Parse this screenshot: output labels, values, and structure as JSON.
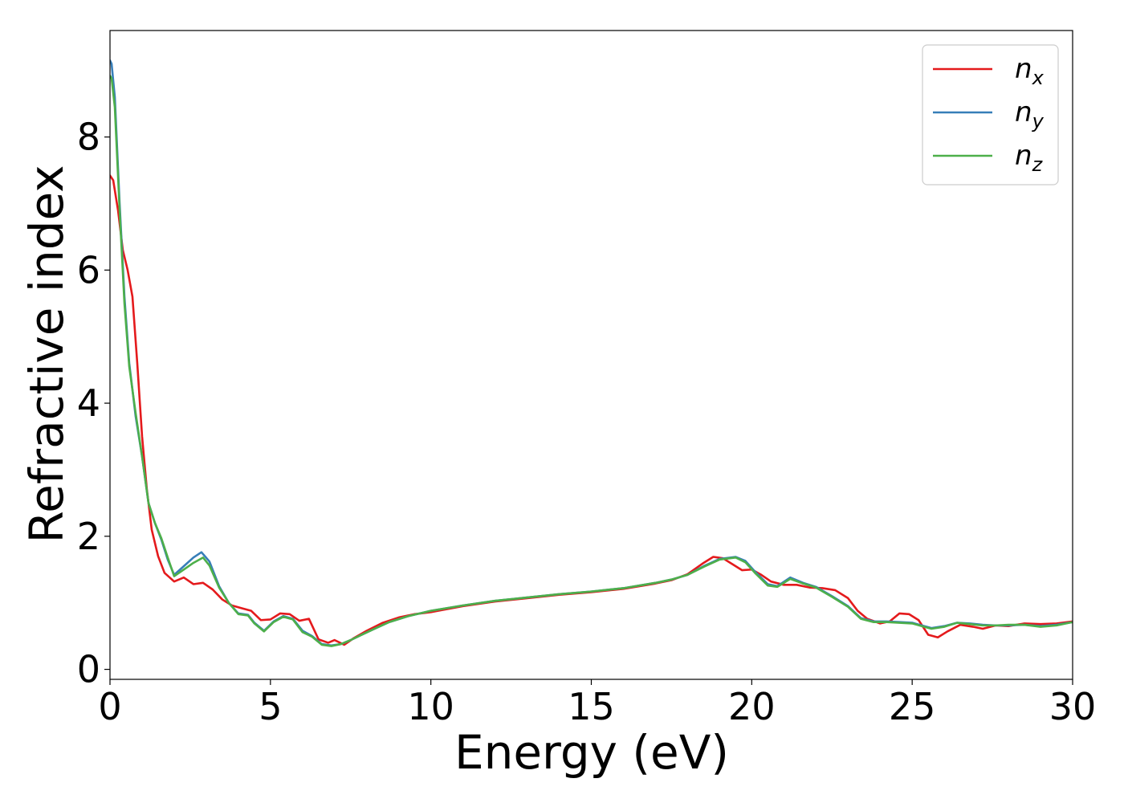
{
  "chart_data": {
    "type": "line",
    "title": "",
    "xlabel": "Energy (eV)",
    "ylabel": "Refractive index",
    "xlim": [
      0,
      30
    ],
    "ylim": [
      -0.15,
      9.6
    ],
    "xticks": [
      0,
      5,
      10,
      15,
      20,
      25,
      30
    ],
    "yticks": [
      0,
      2,
      4,
      6,
      8
    ],
    "grid": false,
    "legend_position": "top-right",
    "series": [
      {
        "name": "n_x",
        "label_base": "n",
        "label_sub": "x",
        "color": "#e41a1c",
        "points": [
          [
            0,
            7.42
          ],
          [
            0.1,
            7.35
          ],
          [
            0.25,
            6.9
          ],
          [
            0.4,
            6.3
          ],
          [
            0.55,
            6.0
          ],
          [
            0.7,
            5.6
          ],
          [
            0.85,
            4.6
          ],
          [
            1.0,
            3.5
          ],
          [
            1.15,
            2.7
          ],
          [
            1.3,
            2.1
          ],
          [
            1.5,
            1.7
          ],
          [
            1.7,
            1.45
          ],
          [
            2.0,
            1.32
          ],
          [
            2.3,
            1.38
          ],
          [
            2.6,
            1.28
          ],
          [
            2.9,
            1.3
          ],
          [
            3.2,
            1.2
          ],
          [
            3.5,
            1.05
          ],
          [
            3.8,
            0.96
          ],
          [
            4.1,
            0.92
          ],
          [
            4.4,
            0.88
          ],
          [
            4.7,
            0.74
          ],
          [
            5.0,
            0.75
          ],
          [
            5.3,
            0.84
          ],
          [
            5.6,
            0.83
          ],
          [
            5.9,
            0.73
          ],
          [
            6.2,
            0.76
          ],
          [
            6.5,
            0.45
          ],
          [
            6.8,
            0.4
          ],
          [
            7.0,
            0.44
          ],
          [
            7.3,
            0.37
          ],
          [
            7.6,
            0.47
          ],
          [
            8.0,
            0.58
          ],
          [
            8.5,
            0.7
          ],
          [
            9.0,
            0.78
          ],
          [
            9.5,
            0.83
          ],
          [
            10.0,
            0.86
          ],
          [
            11.0,
            0.95
          ],
          [
            12.0,
            1.02
          ],
          [
            13.0,
            1.07
          ],
          [
            14.0,
            1.12
          ],
          [
            15.0,
            1.16
          ],
          [
            16.0,
            1.21
          ],
          [
            17.0,
            1.29
          ],
          [
            17.5,
            1.34
          ],
          [
            18.0,
            1.43
          ],
          [
            18.5,
            1.6
          ],
          [
            18.8,
            1.69
          ],
          [
            19.1,
            1.67
          ],
          [
            19.4,
            1.58
          ],
          [
            19.7,
            1.49
          ],
          [
            20.0,
            1.5
          ],
          [
            20.3,
            1.42
          ],
          [
            20.6,
            1.32
          ],
          [
            21.0,
            1.27
          ],
          [
            21.4,
            1.27
          ],
          [
            21.8,
            1.23
          ],
          [
            22.2,
            1.22
          ],
          [
            22.6,
            1.19
          ],
          [
            23.0,
            1.07
          ],
          [
            23.3,
            0.88
          ],
          [
            23.6,
            0.76
          ],
          [
            24.0,
            0.69
          ],
          [
            24.3,
            0.72
          ],
          [
            24.6,
            0.84
          ],
          [
            24.9,
            0.83
          ],
          [
            25.2,
            0.74
          ],
          [
            25.5,
            0.52
          ],
          [
            25.8,
            0.48
          ],
          [
            26.1,
            0.57
          ],
          [
            26.5,
            0.67
          ],
          [
            26.9,
            0.64
          ],
          [
            27.2,
            0.61
          ],
          [
            27.6,
            0.66
          ],
          [
            28.0,
            0.65
          ],
          [
            28.5,
            0.69
          ],
          [
            29.0,
            0.68
          ],
          [
            29.5,
            0.69
          ],
          [
            30.0,
            0.72
          ]
        ]
      },
      {
        "name": "n_y",
        "label_base": "n",
        "label_sub": "y",
        "color": "#377eb8",
        "points": [
          [
            0,
            9.15
          ],
          [
            0.05,
            9.1
          ],
          [
            0.15,
            8.6
          ],
          [
            0.3,
            7.0
          ],
          [
            0.45,
            5.6
          ],
          [
            0.6,
            4.6
          ],
          [
            0.8,
            3.8
          ],
          [
            1.0,
            3.2
          ],
          [
            1.2,
            2.5
          ],
          [
            1.4,
            2.2
          ],
          [
            1.6,
            1.95
          ],
          [
            1.8,
            1.65
          ],
          [
            2.0,
            1.42
          ],
          [
            2.3,
            1.55
          ],
          [
            2.6,
            1.68
          ],
          [
            2.85,
            1.76
          ],
          [
            3.1,
            1.62
          ],
          [
            3.4,
            1.25
          ],
          [
            3.7,
            1.0
          ],
          [
            4.0,
            0.84
          ],
          [
            4.3,
            0.82
          ],
          [
            4.5,
            0.7
          ],
          [
            4.8,
            0.58
          ],
          [
            5.1,
            0.72
          ],
          [
            5.4,
            0.8
          ],
          [
            5.7,
            0.76
          ],
          [
            6.0,
            0.58
          ],
          [
            6.3,
            0.5
          ],
          [
            6.6,
            0.38
          ],
          [
            6.9,
            0.36
          ],
          [
            7.2,
            0.38
          ],
          [
            7.5,
            0.44
          ],
          [
            7.8,
            0.51
          ],
          [
            8.2,
            0.6
          ],
          [
            8.7,
            0.71
          ],
          [
            9.3,
            0.8
          ],
          [
            10.0,
            0.88
          ],
          [
            11.0,
            0.96
          ],
          [
            12.0,
            1.03
          ],
          [
            13.0,
            1.08
          ],
          [
            14.0,
            1.13
          ],
          [
            15.0,
            1.17
          ],
          [
            16.0,
            1.22
          ],
          [
            17.0,
            1.3
          ],
          [
            17.5,
            1.35
          ],
          [
            18.0,
            1.42
          ],
          [
            18.5,
            1.55
          ],
          [
            19.0,
            1.66
          ],
          [
            19.5,
            1.69
          ],
          [
            19.8,
            1.63
          ],
          [
            20.1,
            1.47
          ],
          [
            20.5,
            1.28
          ],
          [
            20.8,
            1.25
          ],
          [
            21.2,
            1.38
          ],
          [
            21.6,
            1.3
          ],
          [
            22.0,
            1.24
          ],
          [
            22.5,
            1.1
          ],
          [
            23.0,
            0.95
          ],
          [
            23.4,
            0.77
          ],
          [
            23.8,
            0.72
          ],
          [
            24.2,
            0.72
          ],
          [
            24.6,
            0.71
          ],
          [
            25.0,
            0.7
          ],
          [
            25.3,
            0.66
          ],
          [
            25.6,
            0.62
          ],
          [
            26.0,
            0.65
          ],
          [
            26.4,
            0.7
          ],
          [
            26.8,
            0.69
          ],
          [
            27.2,
            0.67
          ],
          [
            27.6,
            0.66
          ],
          [
            28.0,
            0.66
          ],
          [
            28.5,
            0.67
          ],
          [
            29.0,
            0.65
          ],
          [
            29.5,
            0.67
          ],
          [
            30.0,
            0.71
          ]
        ]
      },
      {
        "name": "n_z",
        "label_base": "n",
        "label_sub": "z",
        "color": "#4daf4a",
        "points": [
          [
            0,
            8.92
          ],
          [
            0.05,
            8.88
          ],
          [
            0.15,
            8.45
          ],
          [
            0.3,
            6.9
          ],
          [
            0.45,
            5.5
          ],
          [
            0.6,
            4.55
          ],
          [
            0.8,
            3.85
          ],
          [
            1.0,
            3.2
          ],
          [
            1.2,
            2.5
          ],
          [
            1.4,
            2.2
          ],
          [
            1.6,
            1.97
          ],
          [
            1.8,
            1.68
          ],
          [
            2.0,
            1.4
          ],
          [
            2.3,
            1.5
          ],
          [
            2.6,
            1.6
          ],
          [
            2.9,
            1.68
          ],
          [
            3.1,
            1.56
          ],
          [
            3.4,
            1.23
          ],
          [
            3.7,
            1.0
          ],
          [
            4.0,
            0.83
          ],
          [
            4.3,
            0.81
          ],
          [
            4.5,
            0.69
          ],
          [
            4.8,
            0.57
          ],
          [
            5.1,
            0.71
          ],
          [
            5.4,
            0.79
          ],
          [
            5.7,
            0.75
          ],
          [
            6.0,
            0.56
          ],
          [
            6.3,
            0.49
          ],
          [
            6.6,
            0.37
          ],
          [
            6.9,
            0.35
          ],
          [
            7.2,
            0.38
          ],
          [
            7.5,
            0.44
          ],
          [
            7.8,
            0.51
          ],
          [
            8.2,
            0.6
          ],
          [
            8.7,
            0.71
          ],
          [
            9.3,
            0.8
          ],
          [
            10.0,
            0.88
          ],
          [
            11.0,
            0.96
          ],
          [
            12.0,
            1.03
          ],
          [
            13.0,
            1.08
          ],
          [
            14.0,
            1.13
          ],
          [
            15.0,
            1.17
          ],
          [
            16.0,
            1.22
          ],
          [
            17.0,
            1.3
          ],
          [
            17.5,
            1.35
          ],
          [
            18.0,
            1.42
          ],
          [
            18.5,
            1.54
          ],
          [
            19.0,
            1.65
          ],
          [
            19.5,
            1.68
          ],
          [
            19.8,
            1.61
          ],
          [
            20.1,
            1.45
          ],
          [
            20.5,
            1.26
          ],
          [
            20.8,
            1.24
          ],
          [
            21.2,
            1.36
          ],
          [
            21.6,
            1.29
          ],
          [
            22.0,
            1.23
          ],
          [
            22.5,
            1.09
          ],
          [
            23.0,
            0.94
          ],
          [
            23.4,
            0.76
          ],
          [
            23.8,
            0.71
          ],
          [
            24.2,
            0.71
          ],
          [
            24.6,
            0.7
          ],
          [
            25.0,
            0.69
          ],
          [
            25.3,
            0.65
          ],
          [
            25.6,
            0.61
          ],
          [
            26.0,
            0.64
          ],
          [
            26.4,
            0.7
          ],
          [
            26.8,
            0.68
          ],
          [
            27.2,
            0.66
          ],
          [
            27.6,
            0.66
          ],
          [
            28.0,
            0.67
          ],
          [
            28.5,
            0.67
          ],
          [
            29.0,
            0.64
          ],
          [
            29.5,
            0.66
          ],
          [
            30.0,
            0.71
          ]
        ]
      }
    ]
  }
}
